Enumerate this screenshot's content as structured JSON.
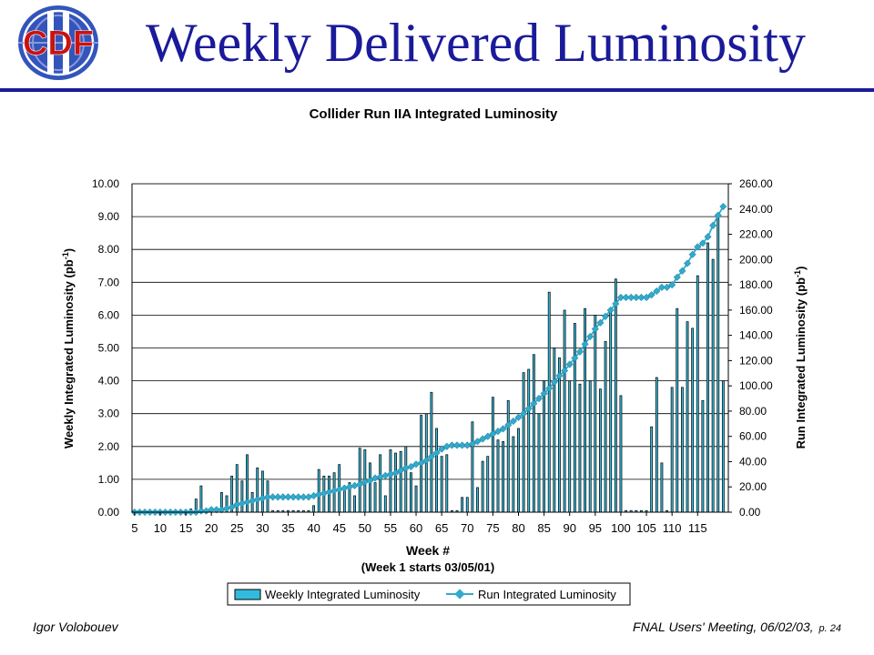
{
  "slide": {
    "title": "Weekly Delivered Luminosity",
    "logo_text": "CDF",
    "logo_numeral": "II",
    "footer_author": "Igor Volobouev",
    "footer_event": "FNAL Users' Meeting, 06/02/03,",
    "footer_page": "p. 24"
  },
  "colors": {
    "title": "#1a1a9a",
    "bar_fill": "#33bbdd",
    "bar_line": "#000000",
    "cumulative_line": "#33aacc",
    "logo_red": "#cc1111",
    "logo_blue": "#3355bb"
  },
  "chart_data": {
    "type": "bar",
    "title": "Collider Run IIA Integrated Luminosity",
    "xlabel": "Week #",
    "xlabel_note": "(Week 1 starts 03/05/01)",
    "ylabel": "Weekly Integrated Luminosity (pb",
    "ylabel_sup": "-1",
    "ylabel_close": ")",
    "y2label": "Run Integrated Luminosity (pb",
    "y2label_sup": "-1",
    "y2label_close": ")",
    "x_ticks": [
      "5",
      "10",
      "15",
      "20",
      "25",
      "30",
      "35",
      "40",
      "45",
      "50",
      "55",
      "60",
      "65",
      "70",
      "75",
      "80",
      "85",
      "90",
      "95",
      "100",
      "105",
      "110",
      "115"
    ],
    "y_ticks": [
      "0.00",
      "1.00",
      "2.00",
      "3.00",
      "4.00",
      "5.00",
      "6.00",
      "7.00",
      "8.00",
      "9.00",
      "10.00"
    ],
    "y2_ticks": [
      "0.00",
      "20.00",
      "40.00",
      "60.00",
      "80.00",
      "100.00",
      "120.00",
      "140.00",
      "160.00",
      "180.00",
      "200.00",
      "220.00",
      "240.00",
      "260.00"
    ],
    "ylim": [
      0,
      10
    ],
    "y2lim": [
      0,
      260
    ],
    "grid": true,
    "legend_position": "bottom-center",
    "weeks_start": 5,
    "series": [
      {
        "name": "Weekly Integrated Luminosity",
        "axis": "left",
        "values": [
          0.02,
          0.02,
          0.02,
          0.02,
          0.02,
          0.03,
          0.02,
          0.02,
          0.03,
          0.05,
          0.03,
          0.1,
          0.4,
          0.8,
          0.1,
          0.05,
          0.1,
          0.6,
          0.5,
          1.1,
          1.45,
          0.95,
          1.75,
          0.6,
          1.35,
          1.25,
          0.95,
          0.05,
          0.05,
          0.05,
          0.05,
          0.05,
          0.05,
          0.05,
          0.05,
          0.2,
          1.3,
          1.1,
          1.1,
          1.2,
          1.45,
          0.8,
          0.9,
          0.5,
          1.95,
          1.9,
          1.5,
          0.9,
          1.75,
          0.5,
          1.9,
          1.8,
          1.85,
          2.0,
          1.2,
          0.8,
          2.95,
          3.0,
          3.65,
          2.55,
          1.7,
          1.75,
          0.05,
          0.05,
          0.45,
          0.45,
          2.75,
          0.75,
          1.55,
          1.7,
          3.5,
          2.2,
          2.15,
          3.4,
          2.3,
          2.55,
          4.25,
          4.35,
          4.8,
          3.0,
          4.0,
          6.7,
          5.0,
          4.7,
          6.15,
          4.0,
          5.75,
          3.9,
          6.2,
          4.0,
          6.0,
          3.75,
          5.2,
          6.15,
          7.1,
          3.55,
          0.05,
          0.05,
          0.05,
          0.05,
          0.05,
          2.6,
          4.1,
          1.5,
          0.05,
          3.8,
          6.2,
          3.8,
          5.8,
          5.6,
          7.2,
          3.4,
          8.2,
          7.7,
          9.0,
          4.0
        ]
      },
      {
        "name": "Run Integrated Luminosity",
        "axis": "right",
        "values": [
          0,
          0,
          0,
          0,
          0,
          0,
          0,
          0,
          0,
          0,
          0,
          0,
          0,
          1,
          1,
          2,
          2,
          2,
          3,
          4,
          6,
          7,
          8,
          9,
          10,
          11,
          12,
          12,
          12,
          12,
          12,
          12,
          12,
          12,
          12,
          13,
          14,
          15,
          16,
          17,
          18,
          19,
          20,
          21,
          22,
          24,
          25,
          27,
          28,
          29,
          30,
          31,
          33,
          35,
          36,
          38,
          39,
          41,
          44,
          47,
          50,
          52,
          53,
          53,
          53,
          53,
          54,
          56,
          58,
          60,
          62,
          64,
          66,
          69,
          72,
          75,
          78,
          82,
          86,
          90,
          94,
          98,
          103,
          108,
          112,
          117,
          122,
          127,
          133,
          139,
          145,
          150,
          155,
          160,
          165,
          170,
          170,
          170,
          170,
          170,
          170,
          172,
          175,
          178,
          178,
          180,
          186,
          191,
          197,
          204,
          210,
          213,
          218,
          227,
          235,
          242
        ]
      }
    ]
  }
}
